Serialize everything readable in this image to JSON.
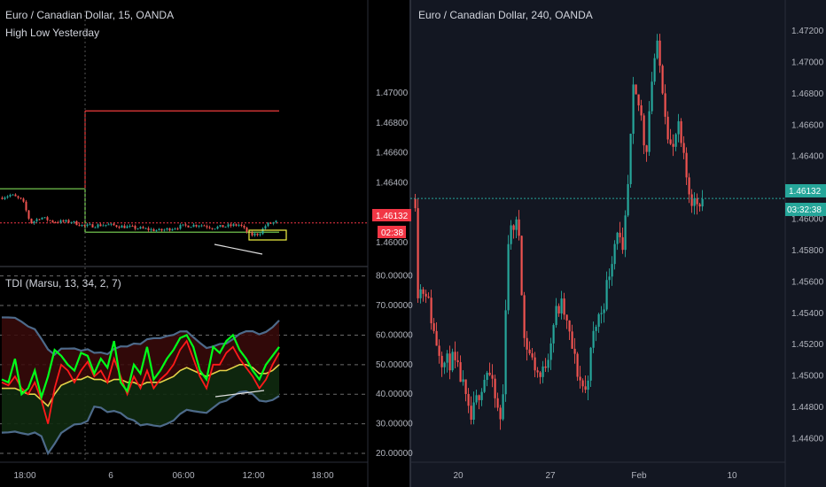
{
  "colors": {
    "left_bg": "#000000",
    "right_bg": "#131722",
    "up": "#26a69a",
    "down": "#ef5350",
    "axis_text": "#b2b5be",
    "price_tag_red": "#f23645",
    "price_tag_teal": "#26a69a",
    "tdi_green": "#00ff1a",
    "tdi_red": "#ff1a1a",
    "tdi_yellow": "#e3d348",
    "band": "#4d6a8a"
  },
  "chart_data": [
    {
      "type": "candlestick",
      "title": "Euro / Canadian Dollar, 15, OANDA",
      "indicator_label": "High Low Yesterday",
      "y_ticks": [
        "1.47000",
        "1.46800",
        "1.46600",
        "1.46400",
        "1.46200",
        "1.46000"
      ],
      "x_ticks": [
        "18:00",
        "6",
        "06:00",
        "12:00",
        "18:00"
      ],
      "last_price": "1.46132",
      "countdown": "02:38",
      "yesterday_high": 1.4688,
      "yesterday_low": 1.4607,
      "prior_high": 1.4636,
      "ylim": [
        1.4587,
        1.4755
      ]
    },
    {
      "type": "line",
      "title": "TDI (Marsu, 13, 34, 2, 7)",
      "y_ticks": [
        "80.00000",
        "70.00000",
        "60.00000",
        "50.00000",
        "40.00000",
        "30.00000",
        "20.00000"
      ],
      "ylim": [
        17,
        82
      ],
      "series": [
        {
          "values": [
            45,
            44,
            52,
            40,
            42,
            48,
            39,
            46,
            55,
            53,
            50,
            48,
            54,
            53,
            47,
            52,
            49,
            58,
            44,
            41,
            50,
            47,
            56,
            45,
            48,
            52,
            55,
            59,
            60,
            56,
            48,
            45,
            56,
            54,
            58,
            60,
            55,
            52,
            48,
            45,
            50,
            53,
            56
          ]
        },
        {
          "values": [
            44,
            43,
            46,
            42,
            40,
            44,
            38,
            30,
            42,
            50,
            48,
            44,
            48,
            51,
            46,
            48,
            44,
            52,
            46,
            40,
            46,
            42,
            48,
            42,
            45,
            47,
            50,
            55,
            58,
            52,
            46,
            42,
            50,
            50,
            54,
            56,
            52,
            49,
            46,
            42,
            45,
            50,
            54
          ]
        },
        {
          "values": [
            42,
            42,
            42,
            41,
            40,
            40,
            38,
            36,
            40,
            43,
            44,
            45,
            45,
            46,
            45,
            45,
            44,
            45,
            45,
            44,
            44,
            43,
            44,
            44,
            44,
            45,
            46,
            48,
            49,
            48,
            47,
            46,
            47,
            48,
            48,
            49,
            50,
            50,
            49,
            47,
            47,
            48,
            50
          ]
        }
      ]
    },
    {
      "type": "candlestick",
      "title": "Euro / Canadian Dollar, 240, OANDA",
      "y_ticks": [
        "1.47200",
        "1.47000",
        "1.46800",
        "1.46600",
        "1.46400",
        "1.46200",
        "1.46000",
        "1.45800",
        "1.45600",
        "1.45400",
        "1.45200",
        "1.45000",
        "1.44800",
        "1.44600"
      ],
      "x_ticks": [
        "20",
        "27",
        "Feb",
        "10"
      ],
      "last_price": "1.46132",
      "countdown": "03:32:38",
      "ylim": [
        1.4445,
        1.4733
      ]
    }
  ]
}
